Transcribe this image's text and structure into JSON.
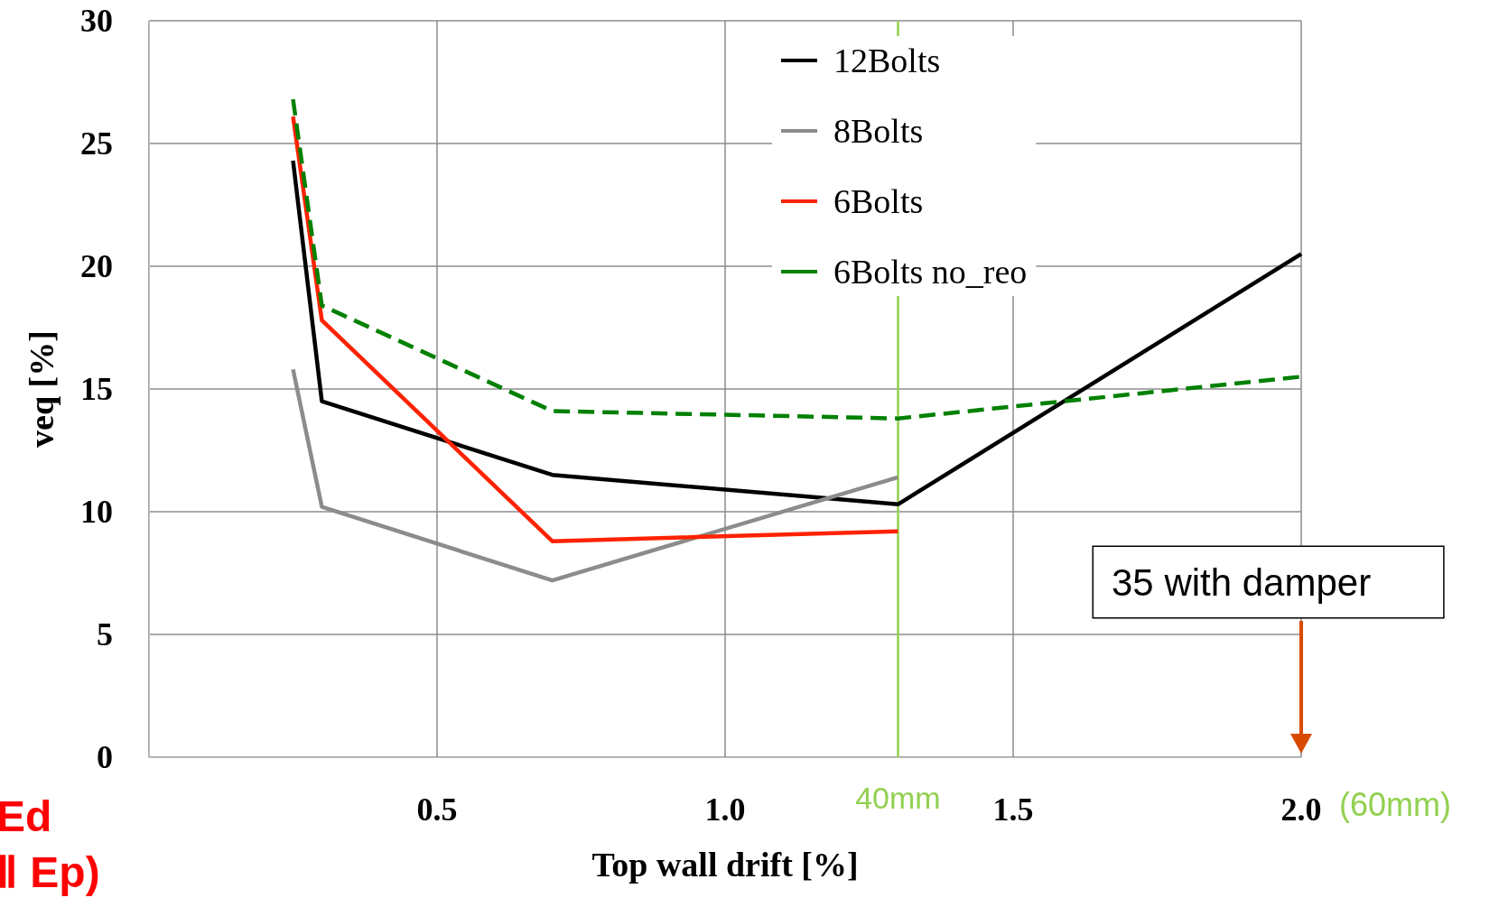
{
  "chart_data": {
    "type": "line",
    "xlabel": "Top wall drift [%]",
    "ylabel": "veq [%]",
    "xlim": [
      0,
      2
    ],
    "xticks": [
      {
        "value": 0,
        "label": null
      },
      {
        "value": 0.5,
        "label": "0.5"
      },
      {
        "value": 1,
        "label": "1.0"
      },
      {
        "value": 1.5,
        "label": "1.5"
      },
      {
        "value": 2,
        "label": "2.0"
      }
    ],
    "ylim": [
      0,
      30
    ],
    "yticks": [
      0,
      5,
      10,
      15,
      20,
      25,
      30
    ],
    "grid": true,
    "legend": "top",
    "marker": "none",
    "series": [
      {
        "name": "12Bolts",
        "color": "#000000",
        "x": [
          0.25,
          0.3,
          0.7,
          1.3,
          2.0
        ],
        "values": [
          24.3,
          14.5,
          11.5,
          10.3,
          20.5
        ]
      },
      {
        "name": "8Bolts",
        "color": "#8c8c8c",
        "x": [
          0.25,
          0.3,
          0.7,
          1.3
        ],
        "values": [
          15.8,
          10.2,
          7.2,
          11.4
        ]
      },
      {
        "name": "6Bolts",
        "color": "#ff2200",
        "x": [
          0.25,
          0.3,
          0.7,
          1.3
        ],
        "values": [
          26.1,
          17.8,
          8.8,
          9.2
        ]
      },
      {
        "name": "6Bolts no_reo",
        "color": "#008000",
        "line_style": "dashed",
        "x": [
          0.25,
          0.3,
          0.7,
          1.3,
          2.0
        ],
        "values": [
          26.8,
          18.4,
          14.1,
          13.8,
          15.5
        ]
      }
    ],
    "ref_lines": [
      {
        "axis": "x",
        "value": 1.3,
        "label": "40mm",
        "color": "#92d050"
      }
    ],
    "annotations": [
      "35 with damper",
      "(60mm)",
      "Ed",
      "Ⅱ Ep)"
    ]
  }
}
